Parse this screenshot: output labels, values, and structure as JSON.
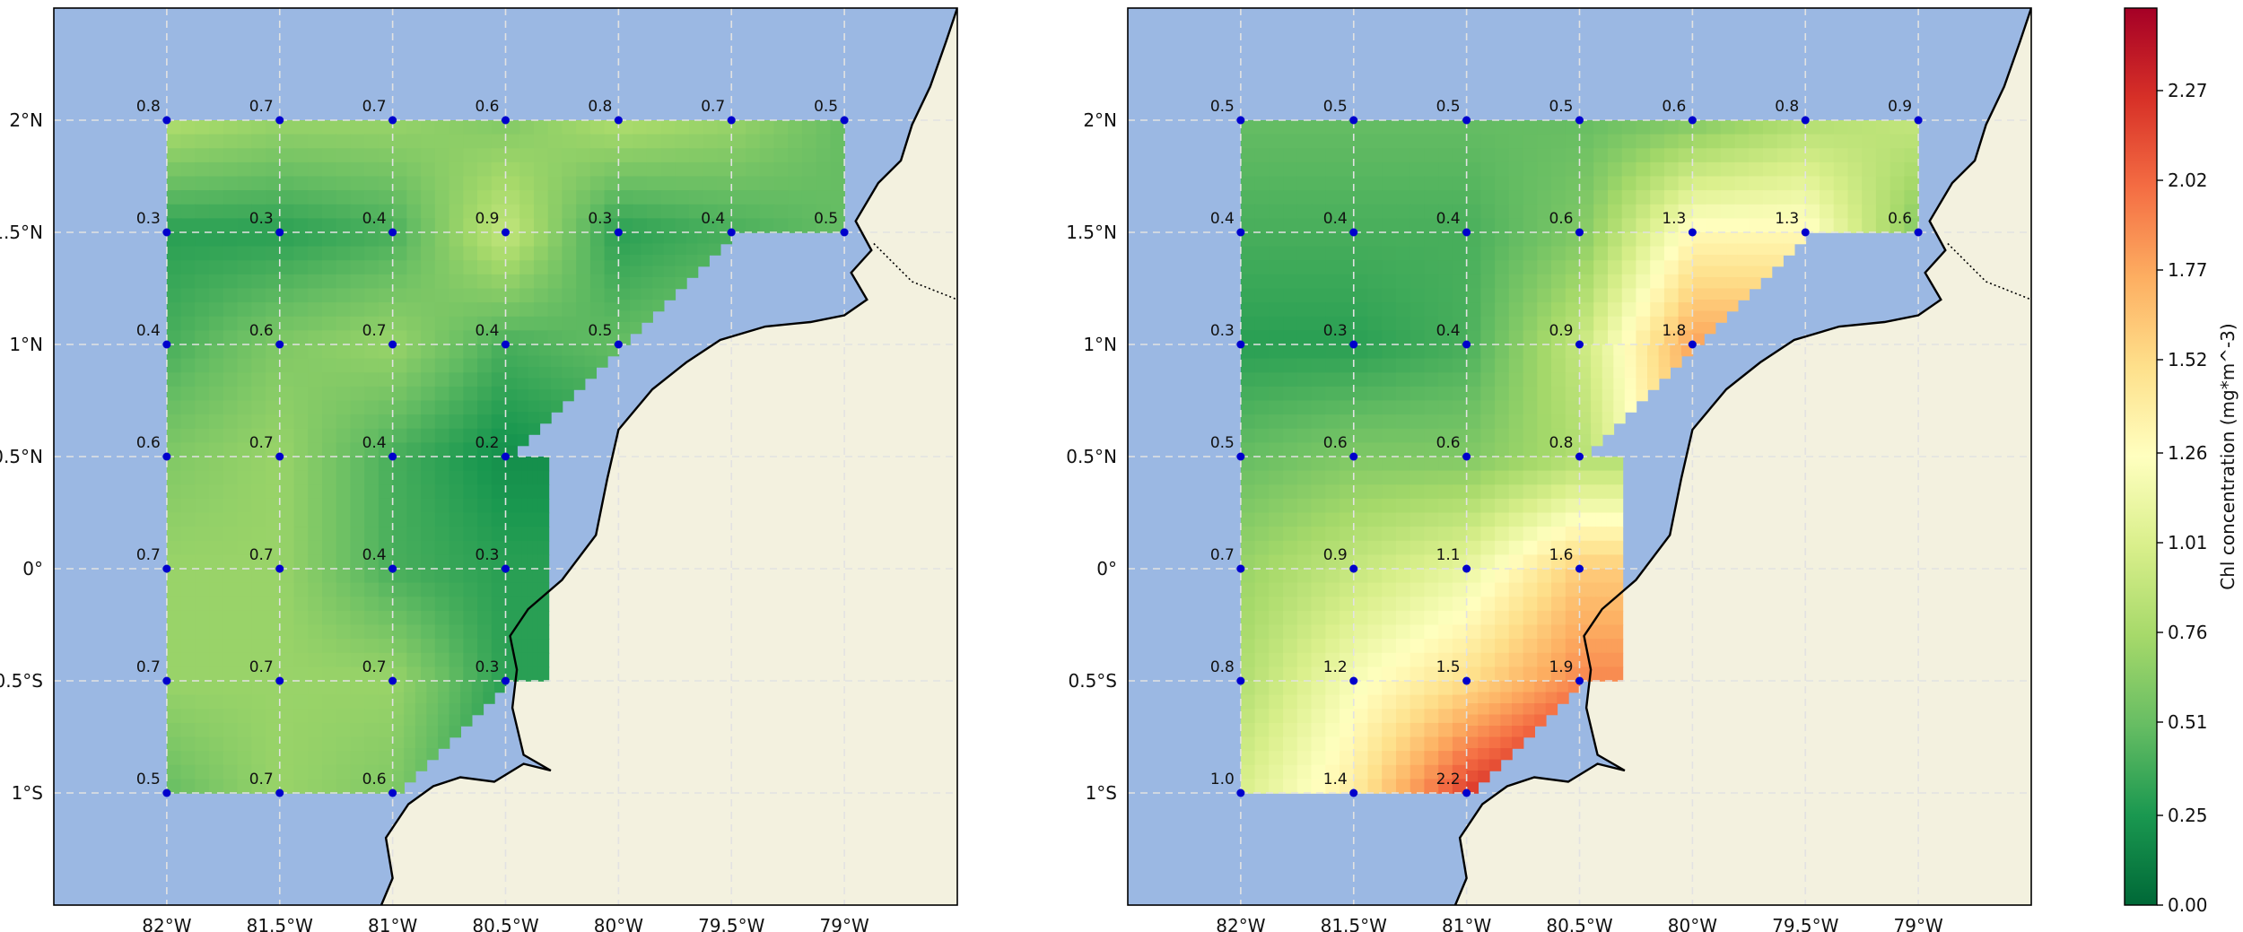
{
  "maps": {
    "lon_ticks": [
      {
        "value": -82,
        "label": "82°W"
      },
      {
        "value": -81.5,
        "label": "81.5°W"
      },
      {
        "value": -81,
        "label": "81°W"
      },
      {
        "value": -80.5,
        "label": "80.5°W"
      },
      {
        "value": -80,
        "label": "80°W"
      },
      {
        "value": -79.5,
        "label": "79.5°W"
      },
      {
        "value": -79,
        "label": "79°W"
      }
    ],
    "lat_ticks": [
      {
        "value": 2,
        "label": "2°N"
      },
      {
        "value": 1.5,
        "label": "1.5°N"
      },
      {
        "value": 1,
        "label": "1°N"
      },
      {
        "value": 0.5,
        "label": "0.5°N"
      },
      {
        "value": 0,
        "label": "0°"
      },
      {
        "value": -0.5,
        "label": "0.5°S"
      },
      {
        "value": -1,
        "label": "1°S"
      }
    ],
    "extent": {
      "lon_min": -82.5,
      "lon_max": -78.5,
      "lat_min": -1.5,
      "lat_max": 2.5
    },
    "panels": [
      {
        "name": "left",
        "stations": [
          {
            "lon": -82,
            "lat": 2,
            "value": "0.8"
          },
          {
            "lon": -81.5,
            "lat": 2,
            "value": "0.7"
          },
          {
            "lon": -81,
            "lat": 2,
            "value": "0.7"
          },
          {
            "lon": -80.5,
            "lat": 2,
            "value": "0.6"
          },
          {
            "lon": -80,
            "lat": 2,
            "value": "0.8"
          },
          {
            "lon": -79.5,
            "lat": 2,
            "value": "0.7"
          },
          {
            "lon": -79,
            "lat": 2,
            "value": "0.5"
          },
          {
            "lon": -82,
            "lat": 1.5,
            "value": "0.3"
          },
          {
            "lon": -81.5,
            "lat": 1.5,
            "value": "0.3"
          },
          {
            "lon": -81,
            "lat": 1.5,
            "value": "0.4"
          },
          {
            "lon": -80.5,
            "lat": 1.5,
            "value": "0.9"
          },
          {
            "lon": -80,
            "lat": 1.5,
            "value": "0.3"
          },
          {
            "lon": -79.5,
            "lat": 1.5,
            "value": "0.4"
          },
          {
            "lon": -79,
            "lat": 1.5,
            "value": "0.5"
          },
          {
            "lon": -82,
            "lat": 1,
            "value": "0.4"
          },
          {
            "lon": -81.5,
            "lat": 1,
            "value": "0.6"
          },
          {
            "lon": -81,
            "lat": 1,
            "value": "0.7"
          },
          {
            "lon": -80.5,
            "lat": 1,
            "value": "0.4"
          },
          {
            "lon": -80,
            "lat": 1,
            "value": "0.5"
          },
          {
            "lon": -82,
            "lat": 0.5,
            "value": "0.6"
          },
          {
            "lon": -81.5,
            "lat": 0.5,
            "value": "0.7"
          },
          {
            "lon": -81,
            "lat": 0.5,
            "value": "0.4"
          },
          {
            "lon": -80.5,
            "lat": 0.5,
            "value": "0.2"
          },
          {
            "lon": -82,
            "lat": 0,
            "value": "0.7"
          },
          {
            "lon": -81.5,
            "lat": 0,
            "value": "0.7"
          },
          {
            "lon": -81,
            "lat": 0,
            "value": "0.4"
          },
          {
            "lon": -80.5,
            "lat": 0,
            "value": "0.3"
          },
          {
            "lon": -82,
            "lat": -0.5,
            "value": "0.7"
          },
          {
            "lon": -81.5,
            "lat": -0.5,
            "value": "0.7"
          },
          {
            "lon": -81,
            "lat": -0.5,
            "value": "0.7"
          },
          {
            "lon": -80.5,
            "lat": -0.5,
            "value": "0.3"
          },
          {
            "lon": -82,
            "lat": -1,
            "value": "0.5"
          },
          {
            "lon": -81.5,
            "lat": -1,
            "value": "0.7"
          },
          {
            "lon": -81,
            "lat": -1,
            "value": "0.6"
          }
        ]
      },
      {
        "name": "right",
        "stations": [
          {
            "lon": -82,
            "lat": 2,
            "value": "0.5"
          },
          {
            "lon": -81.5,
            "lat": 2,
            "value": "0.5"
          },
          {
            "lon": -81,
            "lat": 2,
            "value": "0.5"
          },
          {
            "lon": -80.5,
            "lat": 2,
            "value": "0.5"
          },
          {
            "lon": -80,
            "lat": 2,
            "value": "0.6"
          },
          {
            "lon": -79.5,
            "lat": 2,
            "value": "0.8"
          },
          {
            "lon": -79,
            "lat": 2,
            "value": "0.9"
          },
          {
            "lon": -82,
            "lat": 1.5,
            "value": "0.4"
          },
          {
            "lon": -81.5,
            "lat": 1.5,
            "value": "0.4"
          },
          {
            "lon": -81,
            "lat": 1.5,
            "value": "0.4"
          },
          {
            "lon": -80.5,
            "lat": 1.5,
            "value": "0.6"
          },
          {
            "lon": -80,
            "lat": 1.5,
            "value": "1.3"
          },
          {
            "lon": -79.5,
            "lat": 1.5,
            "value": "1.3"
          },
          {
            "lon": -79,
            "lat": 1.5,
            "value": "0.6"
          },
          {
            "lon": -82,
            "lat": 1,
            "value": "0.3"
          },
          {
            "lon": -81.5,
            "lat": 1,
            "value": "0.3"
          },
          {
            "lon": -81,
            "lat": 1,
            "value": "0.4"
          },
          {
            "lon": -80.5,
            "lat": 1,
            "value": "0.9"
          },
          {
            "lon": -80,
            "lat": 1,
            "value": "1.8"
          },
          {
            "lon": -82,
            "lat": 0.5,
            "value": "0.5"
          },
          {
            "lon": -81.5,
            "lat": 0.5,
            "value": "0.6"
          },
          {
            "lon": -81,
            "lat": 0.5,
            "value": "0.6"
          },
          {
            "lon": -80.5,
            "lat": 0.5,
            "value": "0.8"
          },
          {
            "lon": -82,
            "lat": 0,
            "value": "0.7"
          },
          {
            "lon": -81.5,
            "lat": 0,
            "value": "0.9"
          },
          {
            "lon": -81,
            "lat": 0,
            "value": "1.1"
          },
          {
            "lon": -80.5,
            "lat": 0,
            "value": "1.6"
          },
          {
            "lon": -82,
            "lat": -0.5,
            "value": "0.8"
          },
          {
            "lon": -81.5,
            "lat": -0.5,
            "value": "1.2"
          },
          {
            "lon": -81,
            "lat": -0.5,
            "value": "1.5"
          },
          {
            "lon": -80.5,
            "lat": -0.5,
            "value": "1.9"
          },
          {
            "lon": -82,
            "lat": -1,
            "value": "1.0"
          },
          {
            "lon": -81.5,
            "lat": -1,
            "value": "1.4"
          },
          {
            "lon": -81,
            "lat": -1,
            "value": "2.2"
          }
        ]
      }
    ]
  },
  "colorbar": {
    "label": "Chl concentration (mg*m^-3)",
    "min": 0.0,
    "max": 2.5,
    "ticks": [
      {
        "value": 0.0,
        "label": "0.00"
      },
      {
        "value": 0.25,
        "label": "0.25"
      },
      {
        "value": 0.51,
        "label": "0.51"
      },
      {
        "value": 0.76,
        "label": "0.76"
      },
      {
        "value": 1.01,
        "label": "1.01"
      },
      {
        "value": 1.26,
        "label": "1.26"
      },
      {
        "value": 1.52,
        "label": "1.52"
      },
      {
        "value": 1.77,
        "label": "1.77"
      },
      {
        "value": 2.02,
        "label": "2.02"
      },
      {
        "value": 2.27,
        "label": "2.27"
      }
    ],
    "colormap": [
      "#006837",
      "#1a9850",
      "#66bd63",
      "#a6d96a",
      "#d9ef8b",
      "#ffffbf",
      "#fee08b",
      "#fdae61",
      "#f46d43",
      "#d73027",
      "#a50026"
    ]
  },
  "colors": {
    "ocean": "#9bb8e3",
    "land": "#f3f1df",
    "station_marker": "#0000cc",
    "grid": "#e2e2e2"
  }
}
